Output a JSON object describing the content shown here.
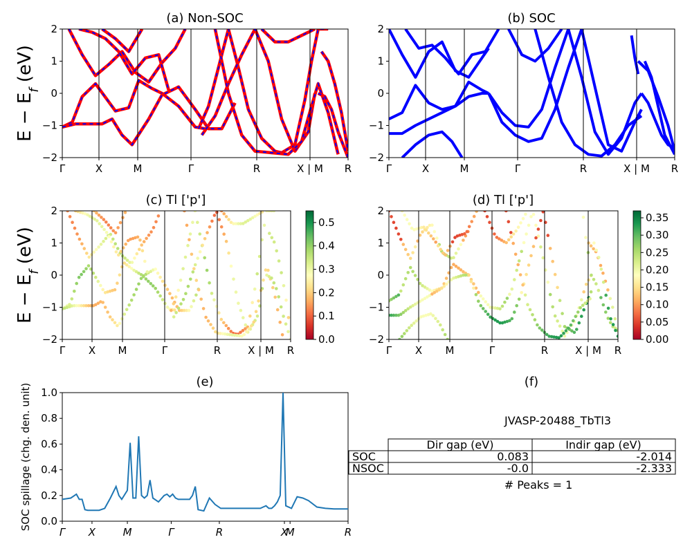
{
  "chart_data": [
    {
      "panel": "a",
      "type": "line",
      "title": "(a) Non-SOC",
      "ylabel": "E − E_f (eV)",
      "ylim": [
        -2,
        2
      ],
      "yticks": [
        "−2",
        "−1",
        "0",
        "1",
        "2"
      ],
      "kticks": [
        "Γ",
        "X",
        "M",
        "Γ",
        "R",
        "X | M",
        "R"
      ],
      "colors": {
        "band": "#ff0000",
        "overlay": "#0000ff"
      },
      "series": [
        {
          "x": [
            0,
            0.3,
            0.6,
            1,
            1.6,
            2,
            2.3,
            2.7,
            3,
            3.5,
            4,
            4.3
          ],
          "values": [
            -1.05,
            -0.9,
            -0.1,
            0.3,
            -0.55,
            -0.45,
            0.4,
            0.15,
            0.0,
            -0.4,
            -1.05,
            -1.1
          ]
        },
        {
          "x": [
            0,
            0.4,
            0.8,
            1.2,
            1.5,
            1.8,
            2.1,
            2.6,
            3,
            3.5,
            4,
            4.4,
            4.8,
            5.2
          ],
          "values": [
            -1.05,
            -0.95,
            -0.95,
            -0.95,
            -0.8,
            -1.3,
            -1.6,
            -0.8,
            -0.05,
            0.2,
            -0.5,
            -1.1,
            -1.1,
            -0.3
          ]
        },
        {
          "x": [
            0.2,
            0.6,
            1,
            1.4,
            1.8,
            2.2,
            2.6,
            3,
            3.4,
            3.7
          ],
          "values": [
            2.0,
            1.2,
            0.55,
            0.9,
            1.3,
            0.65,
            0.35,
            0.95,
            1.4,
            2.0
          ]
        },
        {
          "x": [
            0.5,
            0.9,
            1.3,
            1.7,
            2.1,
            2.5,
            2.9,
            3.2
          ],
          "values": [
            2.0,
            1.9,
            1.7,
            1.3,
            0.6,
            1.1,
            1.2,
            0.1
          ]
        },
        {
          "x": [
            1.2,
            1.6,
            2.0,
            2.4
          ],
          "values": [
            2.0,
            1.7,
            1.3,
            2.0
          ]
        },
        {
          "x": [
            4.1,
            4.4,
            4.7,
            5.0,
            5.3,
            5.6,
            6.0,
            6.4,
            6.6,
            7.0,
            7.3,
            7.5,
            7.7,
            8.0
          ],
          "values": [
            -1.1,
            -0.4,
            0.8,
            2.0,
            0.8,
            -0.5,
            -1.4,
            -1.8,
            -1.85,
            -1.6,
            -0.2,
            1.0,
            2.0,
            2.0
          ]
        },
        {
          "x": [
            4.2,
            4.6,
            5.0,
            5.4,
            5.8,
            6.2,
            6.6,
            7.0,
            7.4,
            7.6
          ],
          "values": [
            -1.3,
            -0.7,
            0.3,
            1.2,
            2.0,
            1.0,
            -0.8,
            -1.8,
            -1.2,
            0.0
          ]
        },
        {
          "x": [
            4.6,
            5.0,
            5.4,
            5.8,
            6.3,
            6.8,
            7.2,
            7.5,
            7.7,
            8.0,
            8.3
          ],
          "values": [
            2.0,
            0.0,
            -1.3,
            -1.8,
            -1.85,
            -1.9,
            -1.5,
            -0.4,
            0.3,
            -0.6,
            -1.9
          ]
        },
        {
          "x": [
            7.7,
            7.9,
            8.1,
            8.3,
            8.6
          ],
          "values": [
            0.0,
            -0.1,
            -0.5,
            -1.2,
            -2.0
          ]
        },
        {
          "x": [
            7.8,
            8.0,
            8.2,
            8.4,
            8.6
          ],
          "values": [
            1.3,
            1.0,
            0.3,
            -0.6,
            -1.8
          ]
        },
        {
          "x": [
            6.0,
            6.4,
            6.8,
            7.2,
            7.6
          ],
          "values": [
            2.0,
            1.6,
            1.6,
            1.8,
            2.0
          ]
        }
      ]
    },
    {
      "panel": "b",
      "type": "line",
      "title": "(b) SOC",
      "ylim": [
        -2,
        2
      ],
      "yticks": [
        "−2",
        "−1",
        "0",
        "1",
        "2"
      ],
      "kticks": [
        "Γ",
        "X",
        "M",
        "Γ",
        "R",
        "X | M",
        "R"
      ],
      "colors": {
        "band": "#0000ff"
      },
      "series": [
        {
          "x": [
            0,
            0.4,
            0.8,
            1.2,
            1.6,
            2.0,
            2.4,
            2.8,
            3.0
          ],
          "values": [
            -0.8,
            -0.6,
            0.25,
            -0.3,
            -0.5,
            -0.4,
            0.35,
            0.1,
            0.0
          ]
        },
        {
          "x": [
            0,
            0.4,
            0.8,
            1.2,
            1.6,
            2.0,
            2.4,
            2.8,
            3.0
          ],
          "values": [
            -1.25,
            -1.25,
            -1.0,
            -0.8,
            -0.6,
            -0.4,
            -0.1,
            0.0,
            0.0
          ]
        },
        {
          "x": [
            0,
            0.4,
            0.8,
            1.2,
            1.6,
            2.0,
            2.4,
            2.8,
            3.0
          ],
          "values": [
            2.0,
            1.2,
            0.5,
            1.3,
            1.6,
            0.7,
            0.5,
            1.1,
            1.4
          ]
        },
        {
          "x": [
            0.5,
            0.9,
            1.3,
            1.7,
            2.1,
            2.5,
            2.9,
            3.3
          ],
          "values": [
            2.0,
            1.4,
            1.5,
            1.1,
            0.6,
            1.2,
            1.3,
            2.0
          ]
        },
        {
          "x": [
            0.4,
            0.8,
            1.2,
            1.6,
            1.9,
            2.2
          ],
          "values": [
            -2.0,
            -1.6,
            -1.3,
            -1.2,
            -1.5,
            -2.0
          ]
        },
        {
          "x": [
            3.0,
            3.4,
            3.8,
            4.2,
            4.6,
            5.0,
            5.4,
            5.8,
            6.2,
            6.6,
            7.0,
            7.4,
            7.6
          ],
          "values": [
            0.0,
            -0.6,
            -1.0,
            -1.05,
            -0.5,
            0.8,
            2.0,
            0.5,
            -1.2,
            -1.9,
            -1.4,
            -0.3,
            0.0
          ]
        },
        {
          "x": [
            3.0,
            3.4,
            3.8,
            4.2,
            4.6,
            5.0,
            5.4,
            5.8,
            6.2,
            6.6,
            7.0,
            7.4,
            7.6
          ],
          "values": [
            0.0,
            -0.9,
            -1.3,
            -1.5,
            -1.4,
            -0.5,
            0.8,
            2.0,
            0.2,
            -1.6,
            -1.8,
            -0.9,
            -0.5
          ]
        },
        {
          "x": [
            4.4,
            4.8,
            5.2,
            5.6,
            6.0,
            6.4,
            6.8,
            7.2,
            7.6
          ],
          "values": [
            2.0,
            0.5,
            -0.9,
            -1.6,
            -1.9,
            -1.95,
            -1.6,
            -1.0,
            -0.7
          ]
        },
        {
          "x": [
            3.6,
            4.0,
            4.4,
            4.8,
            5.2
          ],
          "values": [
            2.0,
            1.2,
            1.0,
            1.4,
            2.0
          ]
        },
        {
          "x": [
            7.6,
            7.8,
            8.0,
            8.2,
            8.4,
            8.6
          ],
          "values": [
            0.0,
            -0.3,
            -0.8,
            -1.3,
            -1.6,
            -1.7
          ]
        },
        {
          "x": [
            7.5,
            7.8,
            8.1,
            8.4,
            8.6
          ],
          "values": [
            1.0,
            0.7,
            -0.1,
            -1.0,
            -1.8
          ]
        },
        {
          "x": [
            7.7,
            7.9,
            8.1,
            8.3,
            8.6
          ],
          "values": [
            1.0,
            0.5,
            -0.4,
            -1.3,
            -1.9
          ]
        },
        {
          "x": [
            7.3,
            7.4,
            7.5
          ],
          "values": [
            1.8,
            1.1,
            0.6
          ]
        }
      ]
    },
    {
      "panel": "c",
      "type": "scatter",
      "title": "(c)  Tl ['p']",
      "ylabel": "E − E_f (eV)",
      "ylim": [
        -2,
        2
      ],
      "yticks": [
        "−2",
        "−1",
        "0",
        "1",
        "2"
      ],
      "kticks": [
        "Γ",
        "X",
        "M",
        "Γ",
        "R",
        "X | M",
        "R"
      ],
      "colorbar": {
        "colormap": "RdYlGn",
        "range": [
          0.0,
          0.55
        ],
        "ticks": [
          "0.0",
          "0.1",
          "0.2",
          "0.3",
          "0.4",
          "0.5"
        ]
      }
    },
    {
      "panel": "d",
      "type": "scatter",
      "title": "(d) Tl ['p']",
      "ylim": [
        -2,
        2
      ],
      "yticks": [
        "−2",
        "−1",
        "0",
        "1",
        "2"
      ],
      "kticks": [
        "Γ",
        "X",
        "M",
        "Γ",
        "R",
        "X | M",
        "R"
      ],
      "colorbar": {
        "colormap": "RdYlGn",
        "range": [
          0.0,
          0.37
        ],
        "ticks": [
          "0.00",
          "0.05",
          "0.10",
          "0.15",
          "0.20",
          "0.25",
          "0.30",
          "0.35"
        ]
      }
    },
    {
      "panel": "e",
      "type": "line",
      "title": "(e)",
      "ylabel": "SOC spillage (chg. den. unit)",
      "ylim": [
        0,
        1
      ],
      "yticks": [
        "0.0",
        "0.2",
        "0.4",
        "0.6",
        "0.8",
        "1.0"
      ],
      "kticks": [
        "Γ",
        "X",
        "M",
        "Γ",
        "R",
        "X",
        "M",
        "R"
      ],
      "color": "#1f77b4",
      "x": [
        0,
        0.3,
        0.5,
        0.6,
        0.7,
        0.8,
        0.9,
        1.0,
        1.3,
        1.5,
        1.7,
        1.9,
        2.0,
        2.1,
        2.3,
        2.4,
        2.5,
        2.6,
        2.7,
        2.8,
        2.9,
        3.0,
        3.1,
        3.2,
        3.4,
        3.6,
        3.7,
        3.8,
        3.9,
        4.0,
        4.1,
        4.2,
        4.3,
        4.4,
        4.5,
        4.6,
        4.7,
        4.8,
        5.0,
        5.2,
        5.4,
        5.6,
        5.8,
        6.0,
        6.2,
        6.3,
        6.4,
        6.6,
        6.8,
        7.0,
        7.1,
        7.2,
        7.3,
        7.4,
        7.5,
        7.6,
        7.7,
        7.8,
        7.9,
        8.1,
        8.3,
        8.5,
        8.7,
        9.0,
        9.3,
        9.6,
        9.9,
        10.1
      ],
      "values": [
        0.17,
        0.18,
        0.21,
        0.17,
        0.17,
        0.09,
        0.085,
        0.085,
        0.085,
        0.1,
        0.18,
        0.27,
        0.2,
        0.17,
        0.24,
        0.61,
        0.18,
        0.18,
        0.66,
        0.2,
        0.18,
        0.2,
        0.32,
        0.18,
        0.15,
        0.2,
        0.21,
        0.19,
        0.21,
        0.18,
        0.17,
        0.17,
        0.17,
        0.17,
        0.17,
        0.2,
        0.27,
        0.09,
        0.08,
        0.18,
        0.13,
        0.1,
        0.1,
        0.1,
        0.1,
        0.1,
        0.1,
        0.1,
        0.1,
        0.1,
        0.11,
        0.12,
        0.1,
        0.1,
        0.12,
        0.15,
        0.2,
        1.0,
        0.12,
        0.1,
        0.19,
        0.18,
        0.16,
        0.11,
        0.1,
        0.095,
        0.095,
        0.095
      ]
    }
  ],
  "panel_f": {
    "title": "(f)",
    "subtitle": "JVASP-20488_TbTl3",
    "headers": [
      "Dir gap (eV)",
      "Indir gap (eV)"
    ],
    "rows": [
      {
        "label": "SOC",
        "dir": "0.083",
        "indir": "-2.014"
      },
      {
        "label": "NSOC",
        "dir": "-0.0",
        "indir": "-2.333"
      }
    ],
    "peaks": "# Peaks = 1"
  }
}
